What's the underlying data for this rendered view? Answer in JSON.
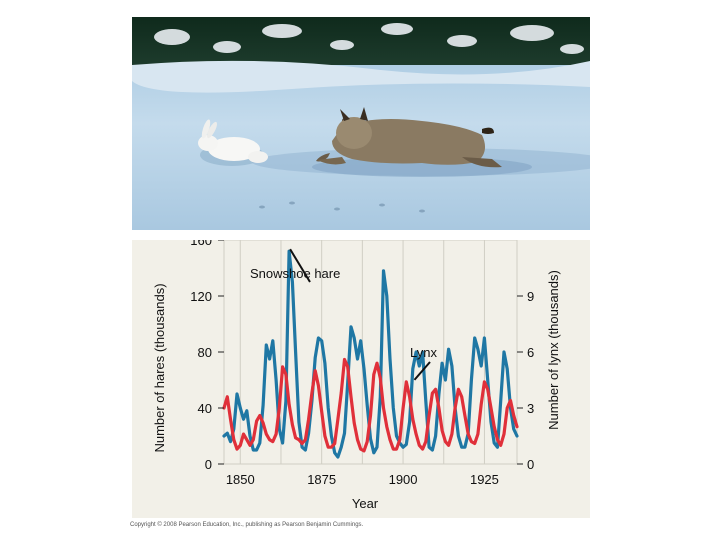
{
  "copyright": "Copyright © 2008 Pearson Education, Inc., publishing as Pearson Benjamin Cummings.",
  "chart_data": {
    "type": "line",
    "title": "",
    "xlabel": "Year",
    "ylabel_left": "Number of hares (thousands)",
    "ylabel_right": "Number of lynx (thousands)",
    "xlim": [
      1845,
      1935
    ],
    "ylim_left": [
      0,
      160
    ],
    "ylim_right": [
      0,
      12
    ],
    "x_ticks": [
      "1850",
      "1875",
      "1900",
      "1925"
    ],
    "y_ticks_left": [
      "0",
      "40",
      "80",
      "120",
      "160"
    ],
    "y_ticks_right": [
      "0",
      "3",
      "6",
      "9"
    ],
    "grid": true,
    "colors": {
      "hare": "#1f77a4",
      "lynx": "#e0303a",
      "panel": "#f2f0e8",
      "grid": "#d0cec4"
    },
    "annotations": [
      {
        "text": "Snowshoe hare",
        "target_series": "hare",
        "target_x": 1865,
        "target_y": 152
      },
      {
        "text": "Lynx",
        "target_series": "lynx",
        "target_x": 1903.5,
        "target_y": 4.4
      }
    ],
    "series": [
      {
        "name": "Snowshoe hare",
        "axis": "left",
        "color": "#1f77a4",
        "x": [
          1845,
          1846,
          1847,
          1848,
          1849,
          1850,
          1851,
          1852,
          1853,
          1854,
          1855,
          1856,
          1857,
          1858,
          1859,
          1860,
          1861,
          1862,
          1863,
          1864,
          1865,
          1866,
          1867,
          1868,
          1869,
          1870,
          1871,
          1872,
          1873,
          1874,
          1875,
          1876,
          1877,
          1878,
          1879,
          1880,
          1881,
          1882,
          1883,
          1884,
          1885,
          1886,
          1887,
          1888,
          1889,
          1890,
          1891,
          1892,
          1893,
          1894,
          1895,
          1896,
          1897,
          1898,
          1899,
          1900,
          1901,
          1902,
          1903,
          1904,
          1905,
          1906,
          1907,
          1908,
          1909,
          1910,
          1911,
          1912,
          1913,
          1914,
          1915,
          1916,
          1917,
          1918,
          1919,
          1920,
          1921,
          1922,
          1923,
          1924,
          1925,
          1926,
          1927,
          1928,
          1929,
          1930,
          1931,
          1932,
          1933,
          1934,
          1935
        ],
        "values": [
          20,
          22,
          16,
          25,
          50,
          40,
          32,
          38,
          20,
          10,
          10,
          15,
          42,
          85,
          75,
          88,
          60,
          25,
          15,
          45,
          152,
          130,
          80,
          30,
          12,
          10,
          22,
          45,
          76,
          90,
          88,
          72,
          40,
          20,
          8,
          5,
          12,
          22,
          58,
          98,
          90,
          75,
          88,
          68,
          42,
          18,
          8,
          12,
          48,
          138,
          120,
          75,
          40,
          20,
          15,
          12,
          14,
          30,
          68,
          80,
          70,
          80,
          45,
          12,
          10,
          20,
          50,
          72,
          60,
          82,
          70,
          40,
          20,
          12,
          12,
          22,
          60,
          90,
          82,
          70,
          90,
          60,
          30,
          15,
          12,
          45,
          80,
          68,
          40,
          25,
          20
        ]
      },
      {
        "name": "Lynx",
        "axis": "right",
        "color": "#e0303a",
        "x": [
          1845,
          1846,
          1847,
          1848,
          1849,
          1850,
          1851,
          1852,
          1853,
          1854,
          1855,
          1856,
          1857,
          1858,
          1859,
          1860,
          1861,
          1862,
          1863,
          1864,
          1865,
          1866,
          1867,
          1868,
          1869,
          1870,
          1871,
          1872,
          1873,
          1874,
          1875,
          1876,
          1877,
          1878,
          1879,
          1880,
          1881,
          1882,
          1883,
          1884,
          1885,
          1886,
          1887,
          1888,
          1889,
          1890,
          1891,
          1892,
          1893,
          1894,
          1895,
          1896,
          1897,
          1898,
          1899,
          1900,
          1901,
          1902,
          1903,
          1904,
          1905,
          1906,
          1907,
          1908,
          1909,
          1910,
          1911,
          1912,
          1913,
          1914,
          1915,
          1916,
          1917,
          1918,
          1919,
          1920,
          1921,
          1922,
          1923,
          1924,
          1925,
          1926,
          1927,
          1928,
          1929,
          1930,
          1931,
          1932,
          1933,
          1934,
          1935
        ],
        "values": [
          3,
          3.6,
          2.4,
          1.3,
          0.8,
          1.0,
          1.6,
          1.3,
          1.0,
          1.3,
          2.3,
          2.6,
          2.2,
          1.6,
          1.3,
          1.2,
          1.6,
          3.0,
          5.2,
          4.8,
          3.2,
          2.1,
          1.4,
          1.3,
          1.1,
          1.3,
          2.4,
          3.8,
          5.0,
          4.2,
          2.8,
          1.5,
          0.9,
          0.9,
          1.1,
          2.4,
          3.8,
          5.6,
          5.2,
          3.6,
          2.2,
          1.3,
          0.8,
          0.7,
          1.2,
          2.6,
          4.8,
          5.4,
          4.6,
          3.0,
          2.0,
          1.3,
          0.8,
          0.8,
          1.3,
          3.0,
          4.4,
          3.6,
          2.4,
          1.6,
          1.0,
          0.8,
          1.2,
          2.6,
          3.8,
          4.0,
          3.0,
          1.8,
          1.2,
          1.0,
          1.6,
          3.0,
          4.0,
          3.6,
          2.6,
          1.6,
          1.2,
          1.1,
          1.6,
          3.2,
          4.4,
          4.0,
          3.0,
          2.0,
          1.3,
          1.0,
          1.6,
          3.0,
          3.4,
          2.6,
          2.0
        ]
      }
    ]
  }
}
